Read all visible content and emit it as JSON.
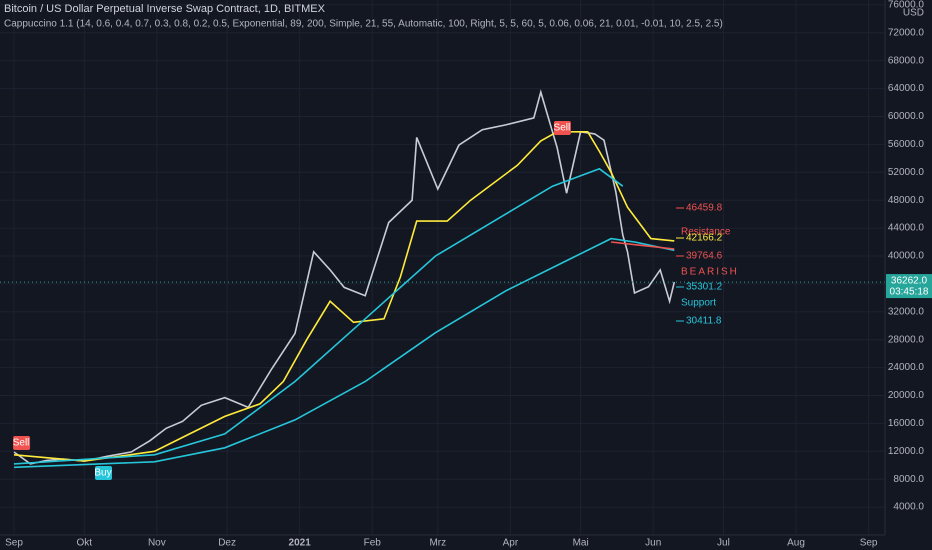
{
  "chart_data": {
    "type": "line",
    "title": "Bitcoin / US Dollar Perpetual Inverse Swap Contract, 1D, BITMEX",
    "subtitle": "Cappuccino 1.1 (14, 0.6, 0.4, 0.7, 0.3, 0.8, 0.2, 0.5, Exponential, 89, 200, Simple, 21, 55, Automatic, 100, Right, 5, 5, 60, 5, 0.06, 0.06, 21, 0.01, -0.01, 10, 2.5, 2.5)",
    "currency": "USD",
    "xlim": [
      -6,
      372
    ],
    "xticks": [
      {
        "value": 0,
        "label": "Sep"
      },
      {
        "value": 30,
        "label": "Okt"
      },
      {
        "value": 61,
        "label": "Nov"
      },
      {
        "value": 91,
        "label": "Dez"
      },
      {
        "value": 122,
        "label": "2021"
      },
      {
        "value": 153,
        "label": "Feb"
      },
      {
        "value": 181,
        "label": "Mrz"
      },
      {
        "value": 212,
        "label": "Apr"
      },
      {
        "value": 242,
        "label": "Mai"
      },
      {
        "value": 273,
        "label": "Jun"
      },
      {
        "value": 303,
        "label": "Jul"
      },
      {
        "value": 334,
        "label": "Aug"
      },
      {
        "value": 365,
        "label": "Sep"
      }
    ],
    "ylim": [
      0,
      76700
    ],
    "yticks": [
      {
        "value": 4000,
        "label": "4000.0"
      },
      {
        "value": 8000,
        "label": "8000.0"
      },
      {
        "value": 12000,
        "label": "12000.0"
      },
      {
        "value": 16000,
        "label": "16000.0"
      },
      {
        "value": 20000,
        "label": "20000.0"
      },
      {
        "value": 24000,
        "label": "24000.0"
      },
      {
        "value": 28000,
        "label": "28000.0"
      },
      {
        "value": 32000,
        "label": "32000.0"
      },
      {
        "value": 36000,
        "label": "36000.0"
      },
      {
        "value": 40000,
        "label": "40000.0"
      },
      {
        "value": 44000,
        "label": "44000.0"
      },
      {
        "value": 48000,
        "label": "48000.0"
      },
      {
        "value": 52000,
        "label": "52000.0"
      },
      {
        "value": 56000,
        "label": "56000.0"
      },
      {
        "value": 60000,
        "label": "60000.0"
      },
      {
        "value": 64000,
        "label": "64000.0"
      },
      {
        "value": 68000,
        "label": "68000.0"
      },
      {
        "value": 72000,
        "label": "72000.0"
      },
      {
        "value": 76000,
        "label": "76000.0"
      }
    ],
    "grid": true,
    "series": [
      {
        "color": "#c8ccd6",
        "x": [
          0,
          7,
          14,
          21,
          30,
          40,
          50,
          58,
          65,
          72,
          80,
          90,
          100,
          110,
          120,
          128,
          135,
          141,
          150,
          160,
          170,
          172,
          181,
          190,
          200,
          210,
          222,
          225,
          232,
          236,
          242,
          248,
          252,
          257,
          260,
          262,
          265,
          271,
          276,
          280,
          282
        ],
        "values": [
          11900,
          10200,
          10700,
          10900,
          10600,
          11300,
          11900,
          13500,
          15300,
          16300,
          18600,
          19700,
          18300,
          23800,
          28900,
          40600,
          38000,
          35500,
          34300,
          44800,
          48000,
          57000,
          49600,
          55900,
          58100,
          58800,
          59800,
          63500,
          55500,
          49000,
          57800,
          57500,
          56600,
          49200,
          43000,
          40600,
          34700,
          35600,
          38000,
          33500,
          36262
        ]
      },
      {
        "color": "#ffeb3b",
        "x": [
          0,
          30,
          60,
          75,
          90,
          105,
          115,
          125,
          135,
          145,
          158,
          165,
          172,
          185,
          195,
          215,
          225,
          232,
          245,
          250,
          255,
          262,
          272,
          282
        ],
        "values": [
          11500,
          10600,
          12000,
          14500,
          17000,
          18800,
          22000,
          28000,
          33500,
          30500,
          31000,
          37000,
          45000,
          45000,
          48000,
          53000,
          56500,
          57800,
          57800,
          55000,
          52000,
          47000,
          42500,
          42166.2
        ]
      },
      {
        "color": "#26c6da",
        "x": [
          0,
          60,
          90,
          120,
          150,
          180,
          210,
          230,
          250,
          260
        ],
        "values": [
          10200,
          11500,
          14500,
          22000,
          31000,
          40000,
          46000,
          50000,
          52500,
          50000
        ]
      },
      {
        "color": "#26c6da",
        "x": [
          0,
          60,
          90,
          120,
          150,
          180,
          210,
          240,
          255,
          265,
          282
        ],
        "values": [
          9700,
          10500,
          12500,
          16500,
          22000,
          29000,
          35000,
          40000,
          42500,
          42000,
          40800
        ]
      },
      {
        "color": "#ef5350",
        "x": [
          255,
          282
        ],
        "values": [
          42000,
          41000
        ]
      }
    ],
    "annotations": [
      {
        "text": "46459.8",
        "color": "#ef5350"
      },
      {
        "text": "Resistance",
        "color": "#ef5350"
      },
      {
        "text": "42166.2",
        "color": "#ffeb3b"
      },
      {
        "text": "39764.6",
        "color": "#ef5350"
      },
      {
        "text": "BEARISH",
        "color": "#ef5350"
      },
      {
        "text": "35301.2",
        "color": "#26c6da"
      },
      {
        "text": "Support",
        "color": "#26c6da"
      },
      {
        "text": "30411.8",
        "color": "#26c6da"
      }
    ],
    "signals": [
      {
        "label": "Sell",
        "x": 3,
        "value": 13190,
        "color": "#ef5350"
      },
      {
        "label": "Buy",
        "x": 38,
        "value": 8890,
        "color": "#26c6da"
      },
      {
        "label": "Sell",
        "x": 234,
        "value": 58350,
        "color": "#ef5350"
      }
    ],
    "last_price": {
      "value": 36262,
      "label": "36262.0",
      "countdown": "03:45:18",
      "color": "#26a69a"
    }
  }
}
